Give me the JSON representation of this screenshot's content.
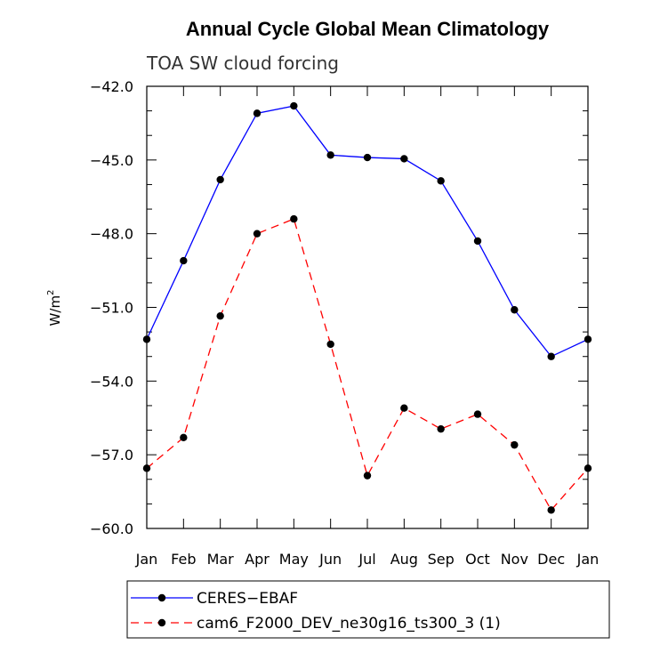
{
  "chart_data": {
    "type": "line",
    "title": "Annual Cycle Global Mean Climatology",
    "subtitle": "TOA SW cloud forcing",
    "xlabel": "",
    "ylabel": "W/m",
    "ylabel_superscript": "2",
    "categories": [
      "Jan",
      "Feb",
      "Mar",
      "Apr",
      "May",
      "Jun",
      "Jul",
      "Aug",
      "Sep",
      "Oct",
      "Nov",
      "Dec",
      "Jan"
    ],
    "ylim": [
      -60.0,
      -42.0
    ],
    "yticks": [
      -42.0,
      -45.0,
      -48.0,
      -51.0,
      -54.0,
      -57.0,
      -60.0
    ],
    "ytick_labels": [
      "−42.0",
      "−45.0",
      "−48.0",
      "−51.0",
      "−54.0",
      "−57.0",
      "−60.0"
    ],
    "series": [
      {
        "name": "CERES−EBAF",
        "color": "#0000ff",
        "dash": "solid",
        "values": [
          -52.3,
          -49.1,
          -45.8,
          -43.1,
          -42.8,
          -44.8,
          -44.9,
          -44.95,
          -45.85,
          -48.3,
          -51.1,
          -53.0,
          -52.3
        ]
      },
      {
        "name": "cam6_F2000_DEV_ne30g16_ts300_3 (1)",
        "color": "#ff0000",
        "dash": "dashed",
        "values": [
          -57.55,
          -56.3,
          -51.35,
          -48.0,
          -47.4,
          -52.5,
          -57.85,
          -55.1,
          -55.95,
          -55.35,
          -56.6,
          -59.25,
          -57.55
        ]
      }
    ],
    "legend_position": "bottom"
  }
}
